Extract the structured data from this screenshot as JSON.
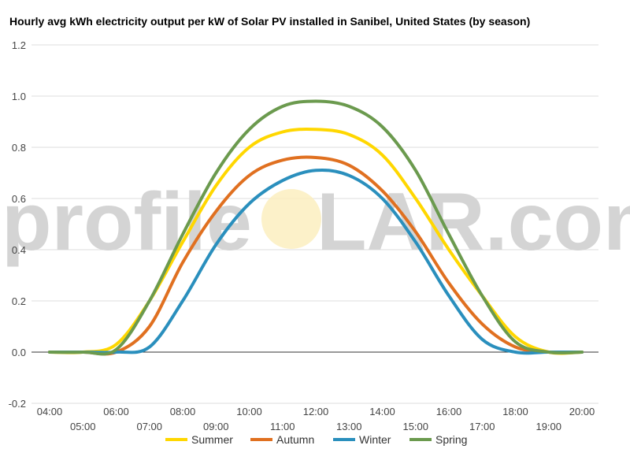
{
  "chart_data": {
    "type": "line",
    "title": "Hourly avg kWh electricity output per kW of Solar PV installed in Sanibel, United States (by season)",
    "xlabel": "",
    "ylabel": "",
    "ylim": [
      -0.2,
      1.2
    ],
    "yticks": [
      "-0.2",
      "0.0",
      "0.2",
      "0.4",
      "0.6",
      "0.8",
      "1.0",
      "1.2"
    ],
    "x": [
      "04:00",
      "05:00",
      "06:00",
      "07:00",
      "08:00",
      "09:00",
      "10:00",
      "11:00",
      "12:00",
      "13:00",
      "14:00",
      "15:00",
      "16:00",
      "17:00",
      "18:00",
      "19:00",
      "20:00"
    ],
    "grid": true,
    "legend_position": "bottom",
    "series": [
      {
        "name": "Summer",
        "color": "#FFD700",
        "values": [
          0.0,
          0.0,
          0.03,
          0.2,
          0.43,
          0.65,
          0.8,
          0.86,
          0.87,
          0.85,
          0.77,
          0.6,
          0.4,
          0.22,
          0.06,
          0.0,
          0.0
        ]
      },
      {
        "name": "Autumn",
        "color": "#E07020",
        "values": [
          0.0,
          0.0,
          0.0,
          0.1,
          0.35,
          0.55,
          0.69,
          0.75,
          0.76,
          0.73,
          0.63,
          0.47,
          0.27,
          0.11,
          0.02,
          0.0,
          0.0
        ]
      },
      {
        "name": "Winter",
        "color": "#2A8FBD",
        "values": [
          0.0,
          0.0,
          0.0,
          0.02,
          0.2,
          0.42,
          0.58,
          0.67,
          0.71,
          0.69,
          0.6,
          0.43,
          0.22,
          0.05,
          0.0,
          0.0,
          0.0
        ]
      },
      {
        "name": "Spring",
        "color": "#6B9A4E",
        "values": [
          0.0,
          0.0,
          0.01,
          0.2,
          0.46,
          0.7,
          0.87,
          0.96,
          0.98,
          0.96,
          0.88,
          0.71,
          0.46,
          0.22,
          0.04,
          0.0,
          0.0
        ]
      }
    ]
  },
  "watermark": {
    "left": "profile",
    "right": "LAR.com"
  }
}
